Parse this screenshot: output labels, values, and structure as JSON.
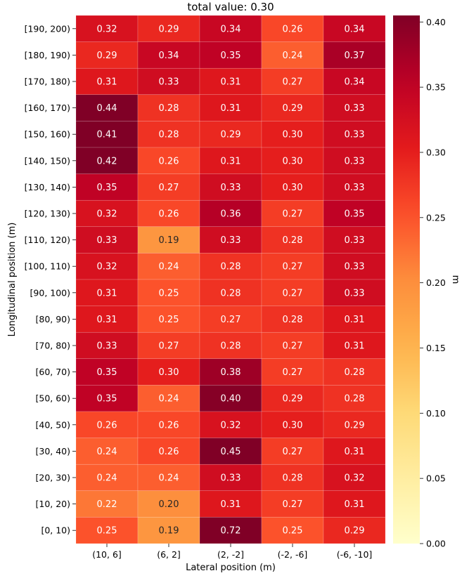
{
  "chart_data": {
    "type": "heatmap",
    "title": "total value: 0.30",
    "xlabel": "Lateral position (m)",
    "ylabel": "Longitudinal position (m)",
    "x_categories": [
      "(10, 6]",
      "(6, 2]",
      "(2, -2]",
      "(-2, -6]",
      "(-6, -10]"
    ],
    "y_categories": [
      "[190, 200)",
      "[180, 190)",
      "[170, 180)",
      "[160, 170)",
      "[150, 160)",
      "[140, 150)",
      "[130, 140)",
      "[120, 130)",
      "[110, 120)",
      "[100, 110)",
      "[90, 100)",
      "[80, 90)",
      "[70, 80)",
      "[60, 70)",
      "[50, 60)",
      "[40, 50)",
      "[30, 40)",
      "[20, 30)",
      "[10, 20)",
      "[0, 10)"
    ],
    "values": [
      [
        0.32,
        0.29,
        0.34,
        0.26,
        0.34
      ],
      [
        0.29,
        0.34,
        0.35,
        0.24,
        0.37
      ],
      [
        0.31,
        0.33,
        0.31,
        0.27,
        0.34
      ],
      [
        0.44,
        0.28,
        0.31,
        0.29,
        0.33
      ],
      [
        0.41,
        0.28,
        0.29,
        0.3,
        0.33
      ],
      [
        0.42,
        0.26,
        0.31,
        0.3,
        0.33
      ],
      [
        0.35,
        0.27,
        0.33,
        0.3,
        0.33
      ],
      [
        0.32,
        0.26,
        0.36,
        0.27,
        0.35
      ],
      [
        0.33,
        0.19,
        0.33,
        0.28,
        0.33
      ],
      [
        0.32,
        0.24,
        0.28,
        0.27,
        0.33
      ],
      [
        0.31,
        0.25,
        0.28,
        0.27,
        0.33
      ],
      [
        0.31,
        0.25,
        0.27,
        0.28,
        0.31
      ],
      [
        0.33,
        0.27,
        0.28,
        0.27,
        0.31
      ],
      [
        0.35,
        0.3,
        0.38,
        0.27,
        0.28
      ],
      [
        0.35,
        0.24,
        0.4,
        0.29,
        0.28
      ],
      [
        0.26,
        0.26,
        0.32,
        0.3,
        0.29
      ],
      [
        0.24,
        0.26,
        0.45,
        0.27,
        0.31
      ],
      [
        0.24,
        0.24,
        0.33,
        0.28,
        0.32
      ],
      [
        0.22,
        0.2,
        0.31,
        0.27,
        0.31
      ],
      [
        0.25,
        0.19,
        0.72,
        0.25,
        0.29
      ]
    ],
    "colorbar": {
      "label": "m",
      "range": [
        0.0,
        0.405
      ],
      "ticks": [
        "0.00",
        "0.05",
        "0.10",
        "0.15",
        "0.20",
        "0.25",
        "0.30",
        "0.35",
        "0.40"
      ],
      "colormap": "YlOrRd"
    },
    "value_format": "2 decimals"
  }
}
